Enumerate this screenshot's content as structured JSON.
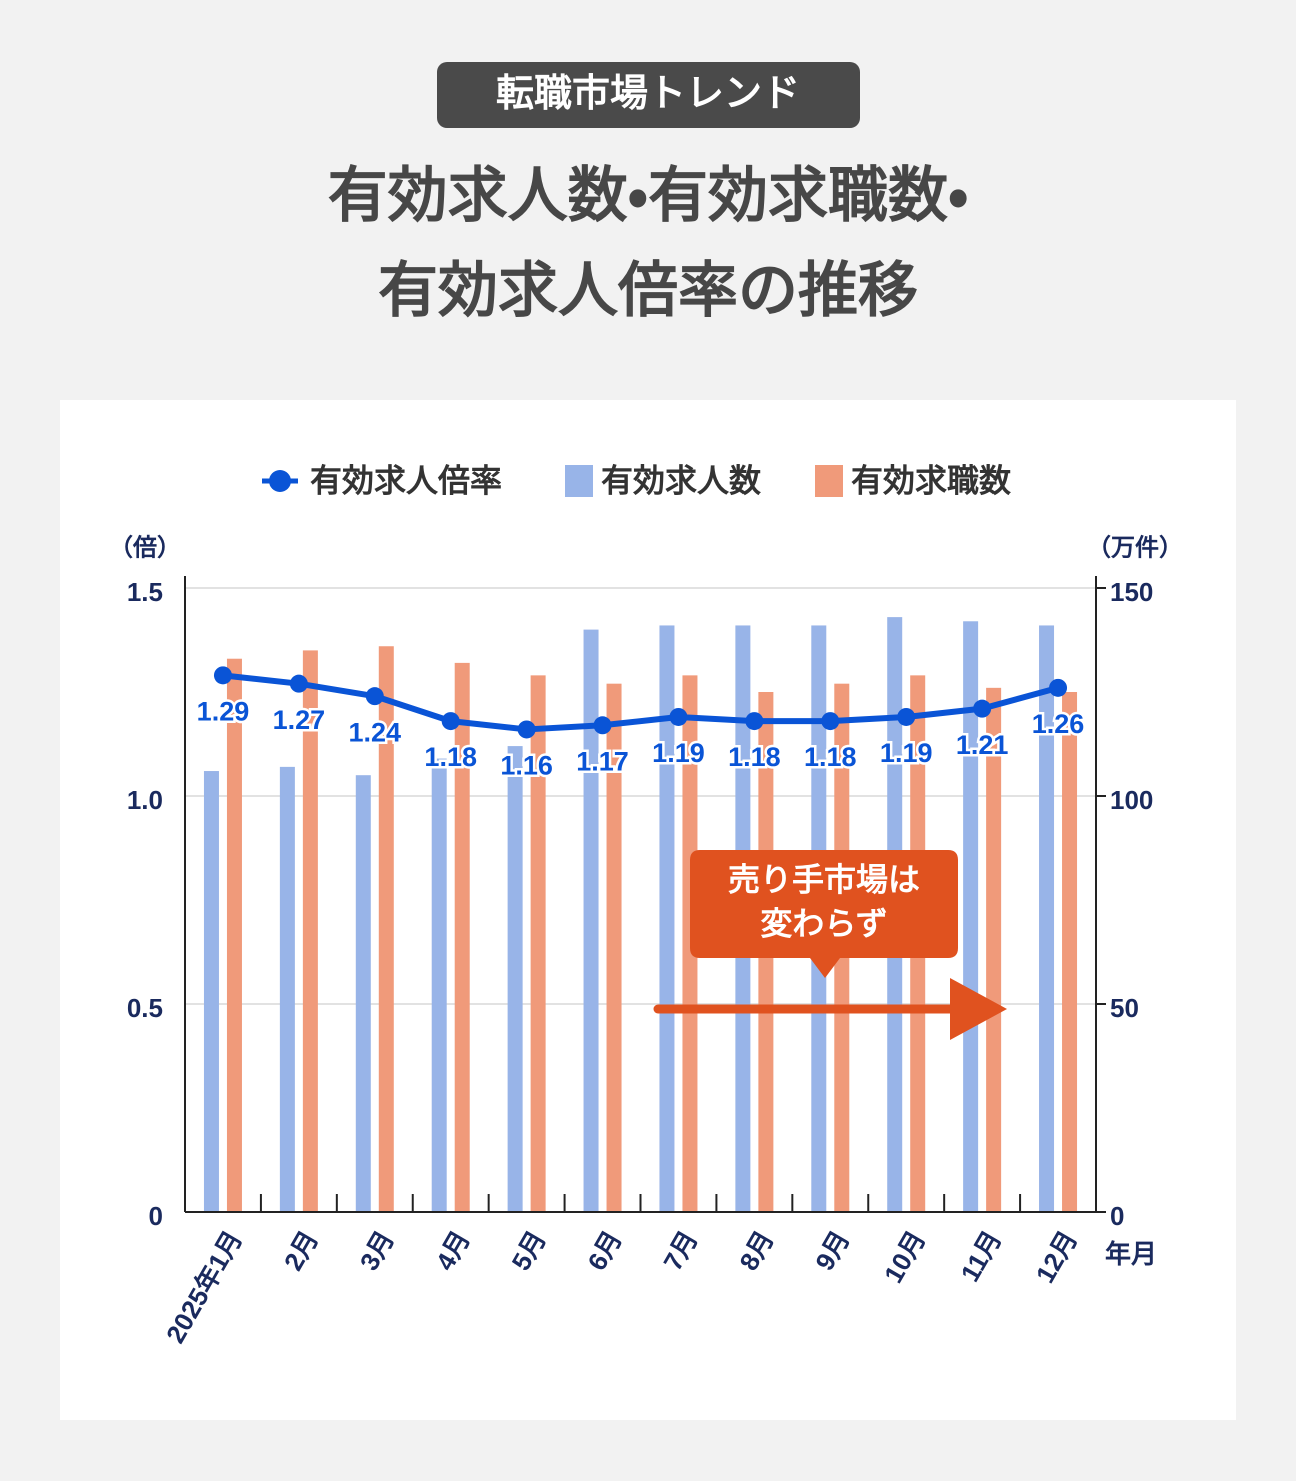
{
  "badge": "転職市場トレンド",
  "chart_data": {
    "type": "combo",
    "title": [
      "有効求人数・有効求職数・",
      "有効求人倍率の推移"
    ],
    "y_label": "（倍）",
    "y2_label": "（万件）",
    "x_label": "年月",
    "categories": [
      "2025年1月",
      "2月",
      "3月",
      "4月",
      "5月",
      "6月",
      "7月",
      "8月",
      "9月",
      "10月",
      "11月",
      "12月"
    ],
    "series": [
      {
        "name": "有効求人倍率",
        "type": "line",
        "color": "#0a54d6",
        "values": [
          1.29,
          1.27,
          1.24,
          1.18,
          1.16,
          1.17,
          1.19,
          1.18,
          1.18,
          1.19,
          1.21,
          1.26
        ]
      },
      {
        "name": "有効求人数",
        "type": "bar",
        "axis": "y2",
        "color": "#98b4e8",
        "values": [
          106,
          107,
          105,
          109,
          112,
          140,
          141,
          141,
          141,
          143,
          142,
          141
        ]
      },
      {
        "name": "有効求職数",
        "type": "bar",
        "axis": "y2",
        "color": "#f09a7a",
        "values": [
          133,
          135,
          136,
          132,
          129,
          127,
          129,
          125,
          127,
          129,
          126,
          125
        ]
      }
    ],
    "ylim": [
      0,
      1.5
    ],
    "yticks": [
      0,
      0.5,
      {
        "value": 1,
        "label": "1.0"
      },
      1.5
    ],
    "y2lim": [
      0,
      150
    ],
    "y2ticks": [
      0,
      50,
      100,
      150
    ],
    "grid": true,
    "annotation": [
      "売り手市場は",
      "変わらず"
    ]
  }
}
